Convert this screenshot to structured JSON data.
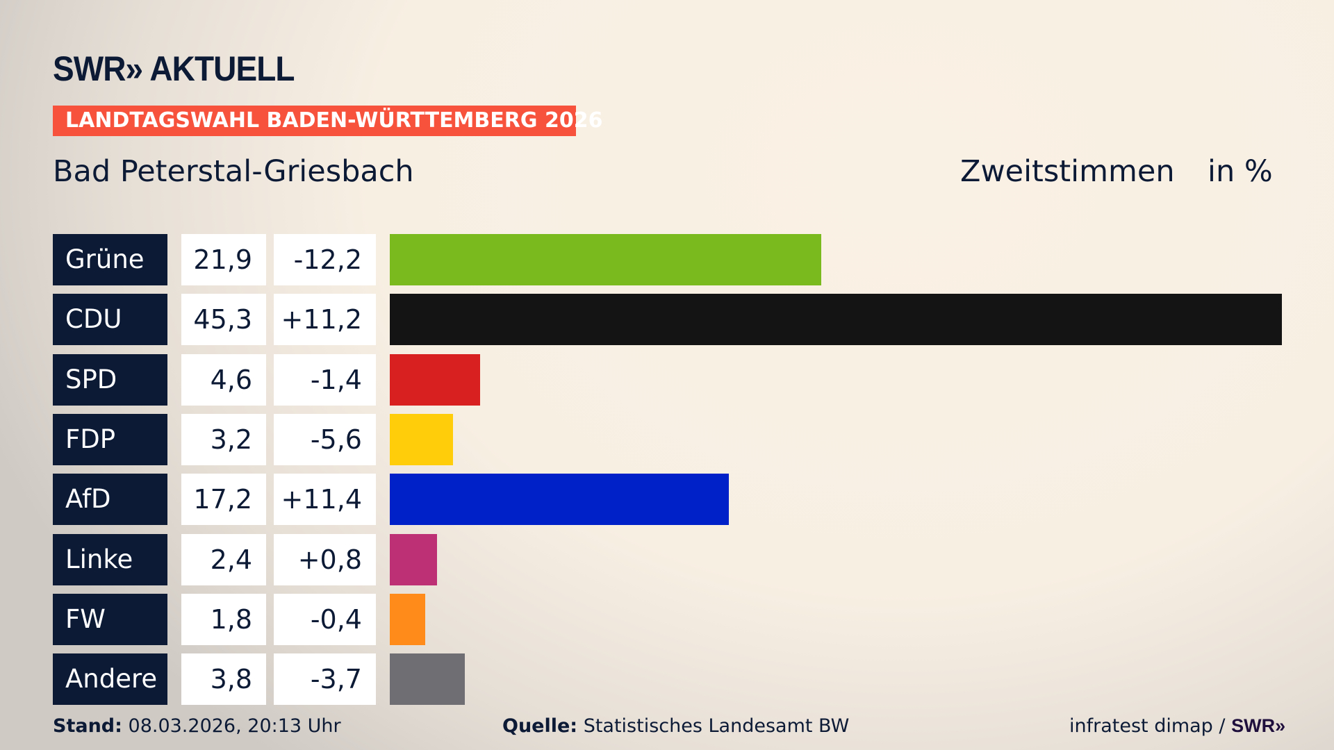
{
  "header": {
    "logo": "SWR» AKTUELL",
    "banner": "LANDTAGSWAHL BADEN-WÜRTTEMBERG 2026",
    "place": "Bad Peterstal-Griesbach",
    "measure": "Zweitstimmen",
    "unit": "in %"
  },
  "chart_data": {
    "type": "bar",
    "orientation": "horizontal",
    "categories": [
      "Grüne",
      "CDU",
      "SPD",
      "FDP",
      "AfD",
      "Linke",
      "FW",
      "Andere"
    ],
    "values": [
      21.9,
      45.3,
      4.6,
      3.2,
      17.2,
      2.4,
      1.8,
      3.8
    ],
    "value_labels": [
      "21,9",
      "45,3",
      "4,6",
      "3,2",
      "17,2",
      "2,4",
      "1,8",
      "3,8"
    ],
    "change_labels": [
      "-12,2",
      "+11,2",
      "-1,4",
      "-5,6",
      "+11,4",
      "+0,8",
      "-0,4",
      "-3,7"
    ],
    "changes": [
      -12.2,
      11.2,
      -1.4,
      -5.6,
      11.4,
      0.8,
      -0.4,
      -3.7
    ],
    "colors": [
      "#7aba1e",
      "#141414",
      "#d7201f",
      "#ffcd0a",
      "#0020c8",
      "#be3075",
      "#ff8c1a",
      "#6f6f73"
    ],
    "xlim": [
      0,
      45.3
    ]
  },
  "footer": {
    "stand_label": "Stand:",
    "stand": "08.03.2026, 20:13 Uhr",
    "source_label": "Quelle:",
    "source": "Statistisches Landesamt BW",
    "credit": "infratest dimap / ",
    "credit_logo": "SWR»"
  }
}
